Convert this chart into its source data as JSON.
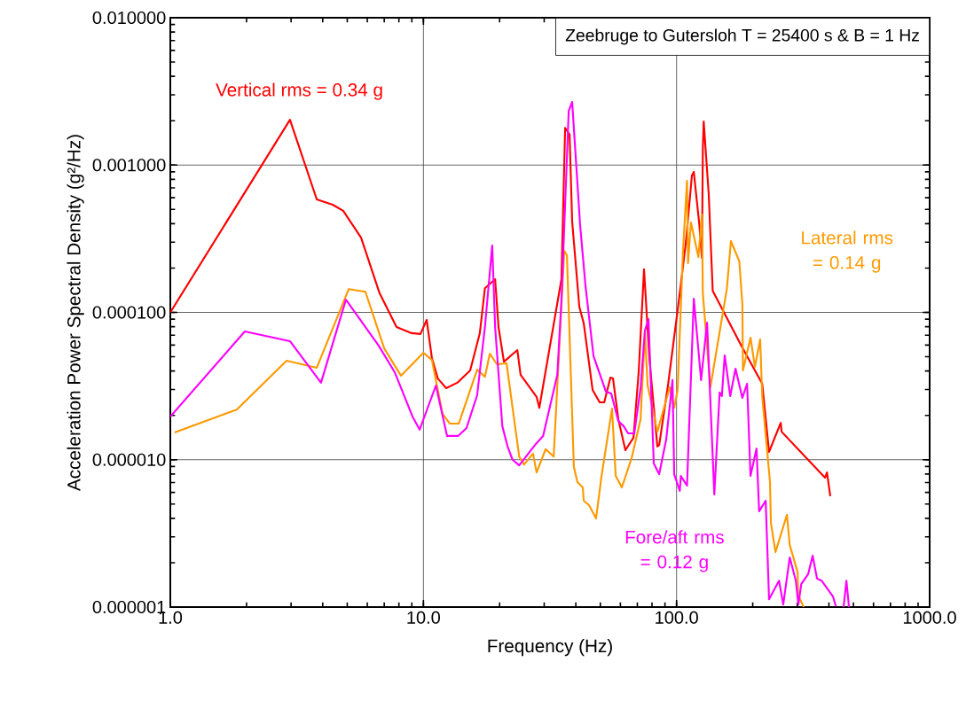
{
  "chart_data": {
    "type": "line",
    "xlabel": "Frequency (Hz)",
    "ylabel": "Acceleration Power Spectral Density (g²/Hz)",
    "annotations": [
      "Zeebruge to Gutersloh T = 25400 s & B = 1 Hz"
    ],
    "log": "xy",
    "grid": true,
    "legend": false,
    "marker": "none",
    "line_style": "solid",
    "xlim": [
      1,
      1000
    ],
    "ylim": [
      1e-06,
      0.01
    ],
    "xticks": [
      {
        "value": 1,
        "label": "1.0"
      },
      {
        "value": 10,
        "label": "10.0"
      },
      {
        "value": 100,
        "label": "100.0"
      },
      {
        "value": 1000,
        "label": "1000.0"
      }
    ],
    "yticks": [
      {
        "value": 1e-06,
        "label": "0.000001"
      },
      {
        "value": 1e-05,
        "label": "0.000010"
      },
      {
        "value": 0.0001,
        "label": "0.000100"
      },
      {
        "value": 0.001,
        "label": "0.001000"
      },
      {
        "value": 0.01,
        "label": "0.010000"
      }
    ],
    "series": [
      {
        "name": "Vertical rms = 0.34 g",
        "color": "#ff0000",
        "x": [
          1.0,
          2.97,
          3.79,
          4.38,
          4.82,
          5.67,
          6.71,
          7.83,
          8.98,
          9.73,
          10.3,
          10.8,
          11.4,
          12.3,
          13.6,
          15.3,
          16.7,
          17.5,
          19.2,
          19.8,
          20.8,
          23.5,
          24.2,
          28.0,
          28.7,
          35.1,
          36.3,
          37.8,
          38.7,
          41.3,
          43.0,
          46.6,
          49.7,
          51.8,
          54.8,
          56.1,
          58.9,
          62.8,
          67.6,
          70.9,
          74.4,
          78.1,
          84.0,
          85.4,
          92.5,
          103,
          109,
          115,
          117,
          123,
          126,
          127,
          128,
          134,
          139,
          181,
          218,
          232,
          258,
          260,
          386,
          393,
          405
        ],
        "values": [
          0.0001,
          0.00203,
          0.000585,
          0.000538,
          0.000489,
          0.000322,
          0.000135,
          7.96e-05,
          7.23e-05,
          7.13e-05,
          8.89e-05,
          4.9e-05,
          3.56e-05,
          3.06e-05,
          3.33e-05,
          4.04e-05,
          7.23e-05,
          0.000146,
          0.000168,
          7.96e-05,
          4.63e-05,
          5.55e-05,
          3.77e-05,
          2.67e-05,
          2.25e-05,
          0.000168,
          0.00179,
          0.00161,
          0.000414,
          0.000109,
          8.4e-05,
          2.98e-05,
          2.45e-05,
          2.45e-05,
          3.61e-05,
          3.56e-05,
          1.88e-05,
          1.16e-05,
          1.41e-05,
          3.98e-05,
          0.000196,
          4.9e-05,
          1.23e-05,
          1.26e-05,
          3.19e-05,
          0.000135,
          0.000305,
          0.00085,
          0.000898,
          0.000396,
          0.000234,
          0.00127,
          0.00198,
          0.000635,
          0.00014,
          5.86e-05,
          3.28e-05,
          1.13e-05,
          1.78e-05,
          1.55e-05,
          7.55e-06,
          8.2e-06,
          5.65e-06
        ]
      },
      {
        "name": "Lateral rms = 0.14 g",
        "color": "#ff9900",
        "x": [
          1.04,
          1.83,
          2.88,
          3.79,
          5.07,
          5.9,
          7.0,
          8.15,
          10.0,
          10.8,
          11.9,
          12.7,
          13.8,
          16.3,
          17.5,
          18.3,
          19.5,
          21.3,
          23.9,
          25.0,
          27.1,
          28.0,
          30.4,
          32.7,
          36.0,
          36.9,
          39.3,
          40.6,
          42.6,
          43.0,
          45.1,
          48.1,
          50.5,
          55.6,
          57.5,
          60.8,
          66.5,
          72.1,
          75.0,
          76.9,
          84.0,
          94.0,
          97.9,
          101,
          106,
          110,
          111,
          114,
          122,
          126,
          127,
          136,
          158,
          164,
          177,
          182,
          183,
          196,
          204,
          214,
          218,
          234,
          236,
          246,
          273,
          280,
          301,
          302,
          318
        ],
        "values": [
          1.53e-05,
          2.19e-05,
          4.7e-05,
          4.21e-05,
          0.000144,
          0.000138,
          5.7e-05,
          3.72e-05,
          5.32e-05,
          4.76e-05,
          2.05e-05,
          1.76e-05,
          1.76e-05,
          4.09e-05,
          3.66e-05,
          5.25e-05,
          4.45e-05,
          4.51e-05,
          1.05e-05,
          9.29e-06,
          1.1e-05,
          8.2e-06,
          1.18e-05,
          1.05e-05,
          0.000262,
          0.000244,
          8.91e-06,
          7.05e-06,
          6.49e-06,
          5.27e-06,
          4.92e-06,
          4e-06,
          7.66e-06,
          2.22e-05,
          7.76e-06,
          6.49e-06,
          1.03e-05,
          1.88e-05,
          7.23e-05,
          3.19e-05,
          1.55e-05,
          3.1e-05,
          2.25e-05,
          2.98e-05,
          0.000258,
          0.000782,
          0.000216,
          0.000408,
          0.000238,
          0.000462,
          0.000136,
          3.1e-05,
          0.000144,
          0.000305,
          0.000222,
          0.000114,
          4.04e-05,
          6.74e-05,
          4.27e-05,
          6.56e-05,
          2.7e-05,
          7.05e-06,
          3.72e-06,
          2.36e-06,
          4.23e-06,
          2.64e-06,
          1.72e-06,
          1.21e-06,
          1e-06
        ]
      },
      {
        "name": "Fore/aft rms = 0.12 g",
        "color": "#ff00ff",
        "x": [
          1.0,
          1.97,
          2.97,
          3.94,
          4.94,
          6.66,
          7.7,
          9.06,
          9.66,
          11.2,
          12.4,
          13.7,
          14.8,
          16.3,
          17.5,
          18.7,
          19.2,
          20.5,
          21.5,
          22.5,
          23.9,
          27.6,
          29.7,
          33.8,
          35.1,
          37.5,
          38.7,
          41.6,
          43.7,
          47.0,
          52.6,
          55.2,
          58.9,
          61.8,
          64.4,
          68.1,
          72.1,
          75.0,
          77.5,
          81.3,
          85.4,
          91.0,
          96.4,
          97.9,
          103,
          104,
          110,
          117,
          125,
          132,
          141,
          148,
          151,
          155,
          163,
          171,
          182,
          190,
          196,
          207,
          212,
          225,
          232,
          254,
          264,
          280,
          296,
          303,
          311,
          331,
          345,
          359,
          374,
          415,
          426,
          440,
          457,
          469,
          480
        ],
        "values": [
          1.96e-05,
          7.43e-05,
          6.38e-05,
          3.33e-05,
          0.000122,
          5.94e-05,
          3.93e-05,
          1.96e-05,
          1.6e-05,
          3.19e-05,
          1.45e-05,
          1.45e-05,
          1.64e-05,
          2.74e-05,
          7.96e-05,
          0.000284,
          7.96e-05,
          1.69e-05,
          1.23e-05,
          1e-05,
          9.16e-06,
          1.26e-05,
          1.45e-05,
          3.77e-05,
          0.000122,
          0.00233,
          0.00268,
          0.000391,
          0.00015,
          5.04e-05,
          2.9e-05,
          2.82e-05,
          1.83e-05,
          1.69e-05,
          1.51e-05,
          1.51e-05,
          3.06e-05,
          7.53e-05,
          9e-05,
          9.42e-06,
          7.98e-06,
          1.37e-05,
          3.47e-05,
          7.98e-06,
          6.14e-06,
          7.76e-06,
          6.67e-06,
          0.000124,
          3.47e-05,
          8.53e-05,
          5.81e-06,
          2.86e-05,
          2.7e-05,
          5.11e-05,
          2.7e-05,
          4.15e-05,
          2.63e-05,
          3.28e-05,
          7.76e-06,
          1.19e-05,
          4.47e-06,
          5.27e-06,
          1.13e-06,
          1.51e-06,
          1.04e-06,
          2.17e-06,
          1.51e-06,
          1.04e-06,
          1.43e-06,
          1.67e-06,
          2.23e-06,
          1.56e-06,
          1.51e-06,
          1.18e-06,
          1.01e-06,
          null,
          1e-06,
          1.51e-06,
          1e-06
        ]
      }
    ]
  }
}
